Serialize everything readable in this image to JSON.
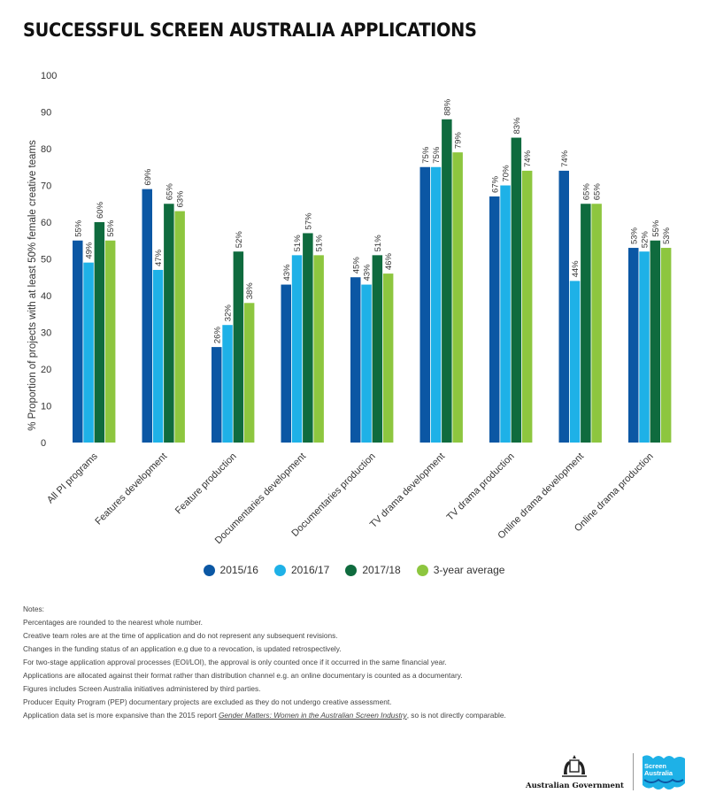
{
  "title": "SUCCESSFUL SCREEN AUSTRALIA APPLICATIONS",
  "colors": {
    "s1": "#0b57a4",
    "s2": "#1eb1e7",
    "s3": "#0f6b3e",
    "s4": "#8dc63f",
    "text": "#333333"
  },
  "chart_data": {
    "type": "bar",
    "title": "SUCCESSFUL SCREEN AUSTRALIA APPLICATIONS",
    "ylabel": "% Proportion of projects with at least 50% female creative teams",
    "xlabel": "",
    "ylim": [
      0,
      100
    ],
    "yticks": [
      0,
      10,
      20,
      30,
      40,
      50,
      60,
      70,
      80,
      90,
      100
    ],
    "grid": false,
    "legend_position": "bottom",
    "categories": [
      "All PI programs",
      "Features development",
      "Feature production",
      "Documentaries development",
      "Documentaries production",
      "TV drama development",
      "TV drama production",
      "Online drama development",
      "Online drama production"
    ],
    "series": [
      {
        "name": "2015/16",
        "color": "#0b57a4",
        "values": [
          55,
          69,
          26,
          43,
          45,
          75,
          67,
          74,
          53
        ]
      },
      {
        "name": "2016/17",
        "color": "#1eb1e7",
        "values": [
          49,
          47,
          32,
          51,
          43,
          75,
          70,
          44,
          52
        ]
      },
      {
        "name": "2017/18",
        "color": "#0f6b3e",
        "values": [
          60,
          65,
          52,
          57,
          51,
          88,
          83,
          65,
          55
        ]
      },
      {
        "name": "3-year average",
        "color": "#8dc63f",
        "values": [
          55,
          63,
          38,
          51,
          46,
          79,
          74,
          65,
          53
        ]
      }
    ],
    "value_suffix": "%"
  },
  "notes": {
    "heading": "Notes:",
    "items": [
      "Percentages are rounded to the nearest whole number.",
      "Creative team roles are at the time of application and do not represent any subsequent revisions.",
      "Changes in the funding status of an application e.g due to a revocation, is updated retrospectively.",
      "For two-stage application approval processes (EOI/LOI), the approval is only counted once if it occurred in the same financial year.",
      "Applications are allocated against their format rather than distribution channel e.g. an online documentary is counted as a documentary.",
      "Figures includes Screen Australia initiatives administered by third parties.",
      "Producer Equity Program (PEP) documentary projects are excluded as they do not undergo creative assessment."
    ],
    "last_prefix": "Application data set is more expansive than the 2015 report ",
    "last_link": "Gender Matters: Women in the Australian Screen Industry",
    "last_suffix": ", so is not directly comparable."
  },
  "footer": {
    "gov_label": "Australian Government",
    "sa_line1": "Screen",
    "sa_line2": "Australia"
  }
}
